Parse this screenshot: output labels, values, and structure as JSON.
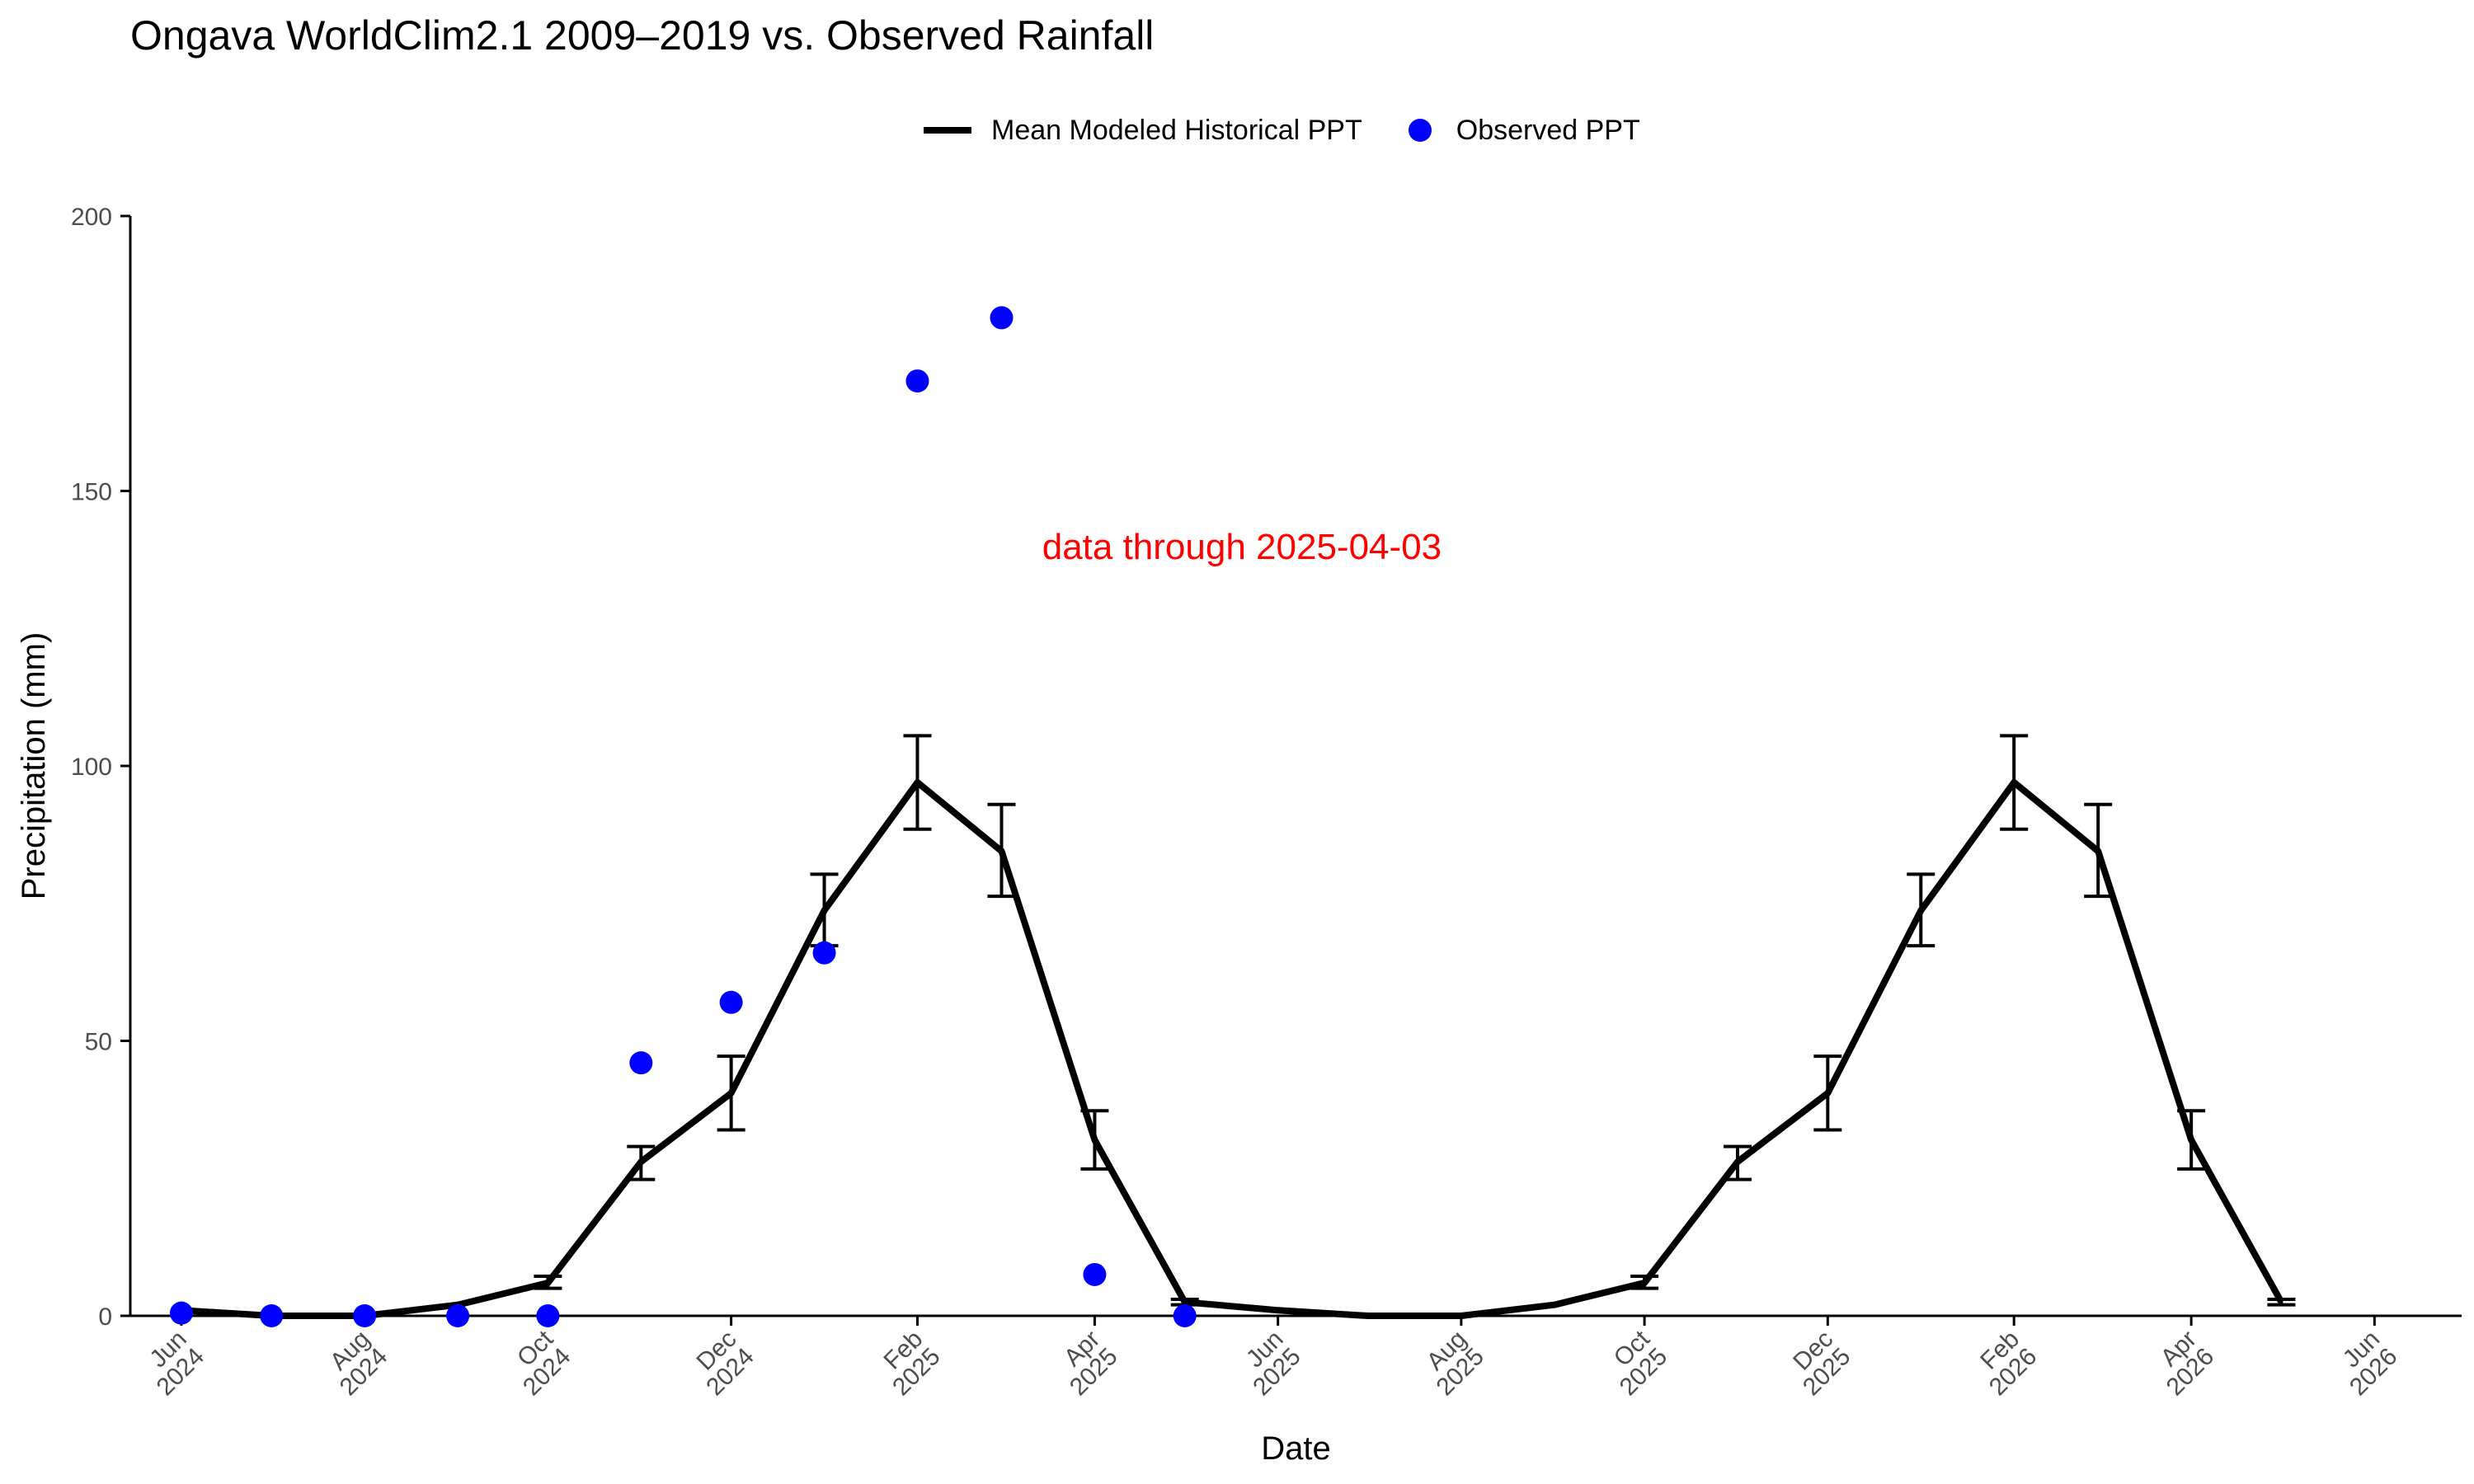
{
  "chart_data": {
    "type": "line",
    "title": "Ongava WorldClim2.1 2009–2019 vs. Observed Rainfall",
    "xlabel": "Date",
    "ylabel": "Precipitation (mm)",
    "ylim": [
      0,
      200
    ],
    "xlim": [
      "2024-05-15",
      "2026-06-30"
    ],
    "y_ticks": [
      0,
      50,
      100,
      150,
      200
    ],
    "x_ticks": [
      {
        "date": "2024-06-01",
        "line1": "Jun",
        "line2": "2024"
      },
      {
        "date": "2024-08-01",
        "line1": "Aug",
        "line2": "2024"
      },
      {
        "date": "2024-10-01",
        "line1": "Oct",
        "line2": "2024"
      },
      {
        "date": "2024-12-01",
        "line1": "Dec",
        "line2": "2024"
      },
      {
        "date": "2025-02-01",
        "line1": "Feb",
        "line2": "2025"
      },
      {
        "date": "2025-04-01",
        "line1": "Apr",
        "line2": "2025"
      },
      {
        "date": "2025-06-01",
        "line1": "Jun",
        "line2": "2025"
      },
      {
        "date": "2025-08-01",
        "line1": "Aug",
        "line2": "2025"
      },
      {
        "date": "2025-10-01",
        "line1": "Oct",
        "line2": "2025"
      },
      {
        "date": "2025-12-01",
        "line1": "Dec",
        "line2": "2025"
      },
      {
        "date": "2026-02-01",
        "line1": "Feb",
        "line2": "2026"
      },
      {
        "date": "2026-04-01",
        "line1": "Apr",
        "line2": "2026"
      },
      {
        "date": "2026-06-01",
        "line1": "Jun",
        "line2": "2026"
      }
    ],
    "grid": false,
    "legend_position": "top",
    "series": [
      {
        "name": "Mean Modeled Historical PPT",
        "kind": "line",
        "color": "#000000",
        "points": [
          {
            "x": "2024-06-01",
            "y": 1.0
          },
          {
            "x": "2024-07-01",
            "y": 0.0
          },
          {
            "x": "2024-08-01",
            "y": 0.0
          },
          {
            "x": "2024-09-01",
            "y": 2.0
          },
          {
            "x": "2024-10-01",
            "y": 6.0,
            "lo": 5.0,
            "hi": 7.2
          },
          {
            "x": "2024-11-01",
            "y": 28.0,
            "lo": 24.8,
            "hi": 30.8
          },
          {
            "x": "2024-12-01",
            "y": 40.5,
            "lo": 33.8,
            "hi": 47.2
          },
          {
            "x": "2025-01-01",
            "y": 73.7,
            "lo": 67.3,
            "hi": 80.3
          },
          {
            "x": "2025-02-01",
            "y": 97.0,
            "lo": 88.5,
            "hi": 105.5
          },
          {
            "x": "2025-03-01",
            "y": 84.5,
            "lo": 76.3,
            "hi": 93.0
          },
          {
            "x": "2025-04-01",
            "y": 32.0,
            "lo": 26.7,
            "hi": 37.3
          },
          {
            "x": "2025-05-01",
            "y": 2.5,
            "lo": 2.0,
            "hi": 3.0
          },
          {
            "x": "2025-06-01",
            "y": 1.0
          },
          {
            "x": "2025-07-01",
            "y": 0.0
          },
          {
            "x": "2025-08-01",
            "y": 0.0
          },
          {
            "x": "2025-09-01",
            "y": 2.0
          },
          {
            "x": "2025-10-01",
            "y": 6.0,
            "lo": 5.0,
            "hi": 7.2
          },
          {
            "x": "2025-11-01",
            "y": 28.0,
            "lo": 24.8,
            "hi": 30.8
          },
          {
            "x": "2025-12-01",
            "y": 40.5,
            "lo": 33.8,
            "hi": 47.2
          },
          {
            "x": "2026-01-01",
            "y": 73.7,
            "lo": 67.3,
            "hi": 80.3
          },
          {
            "x": "2026-02-01",
            "y": 97.0,
            "lo": 88.5,
            "hi": 105.5
          },
          {
            "x": "2026-03-01",
            "y": 84.5,
            "lo": 76.3,
            "hi": 93.0
          },
          {
            "x": "2026-04-01",
            "y": 32.0,
            "lo": 26.7,
            "hi": 37.3
          },
          {
            "x": "2026-05-01",
            "y": 2.5,
            "lo": 2.0,
            "hi": 3.0
          }
        ]
      },
      {
        "name": "Observed PPT",
        "kind": "scatter",
        "color": "#0000ff",
        "points": [
          {
            "x": "2024-06-01",
            "y": 0.5
          },
          {
            "x": "2024-07-01",
            "y": 0.0
          },
          {
            "x": "2024-08-01",
            "y": 0.0
          },
          {
            "x": "2024-09-01",
            "y": 0.0
          },
          {
            "x": "2024-10-01",
            "y": 0.0
          },
          {
            "x": "2024-11-01",
            "y": 46.0
          },
          {
            "x": "2024-12-01",
            "y": 57.0
          },
          {
            "x": "2025-01-01",
            "y": 66.0
          },
          {
            "x": "2025-02-01",
            "y": 170.0
          },
          {
            "x": "2025-03-01",
            "y": 181.5
          },
          {
            "x": "2025-04-01",
            "y": 7.5
          },
          {
            "x": "2025-05-01",
            "y": 0.0
          }
        ]
      }
    ],
    "annotations": [
      {
        "text": "data through 2025-04-03",
        "x": "2025-05-20",
        "y": 140,
        "color": "#ff0000"
      }
    ]
  }
}
